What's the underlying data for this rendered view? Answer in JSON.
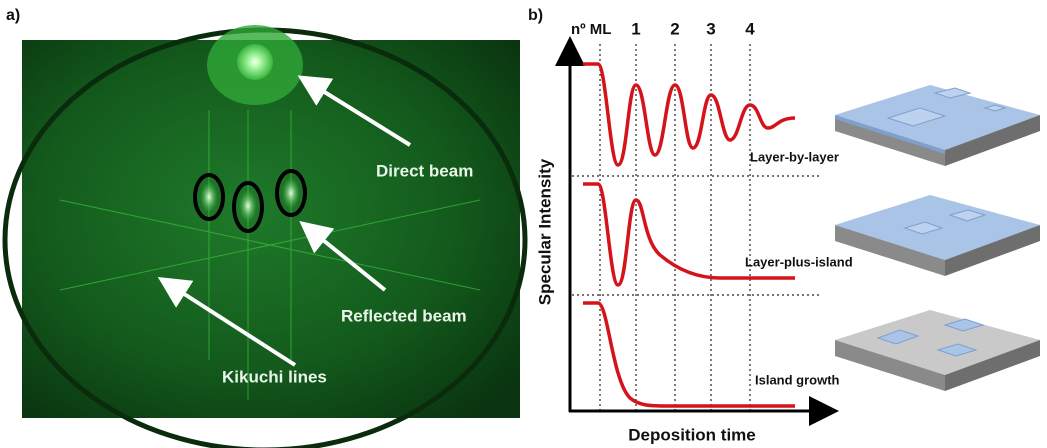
{
  "panel_a": {
    "label": "a)",
    "annotations": [
      "Direct beam",
      "Reflected beam",
      "Kikuchi lines"
    ]
  },
  "panel_b": {
    "label": "b)",
    "monolayer_label": "nº ML",
    "monolayer_ticks": [
      "1",
      "2",
      "3",
      "4"
    ],
    "y_axis_label": "Specular Intensity",
    "x_axis_label": "Deposition time",
    "growth_modes": [
      "Layer-by-layer",
      "Layer-plus-island",
      "Island growth"
    ]
  }
}
